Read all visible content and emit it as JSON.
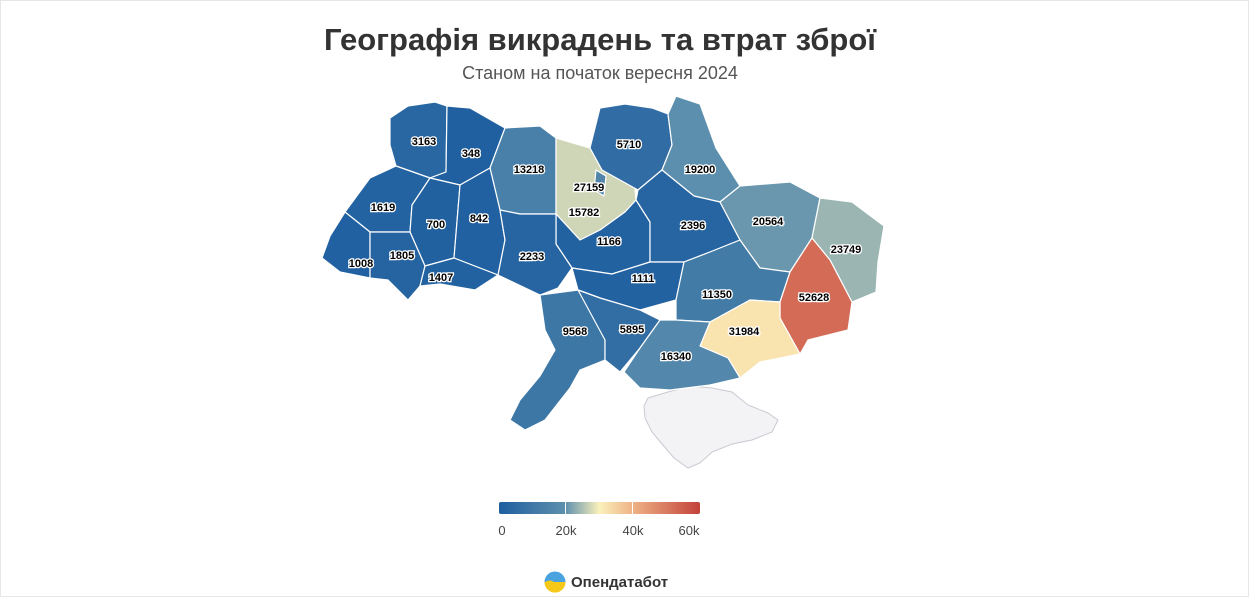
{
  "title": "Географія викрадень та втрат зброї",
  "subtitle": "Станом на початок вересня 2024",
  "colors": {
    "low": "#1f5fa0",
    "mid": "#fbf1bb",
    "high": "#c3413a",
    "no_data": "#f3f3f6"
  },
  "map_data": {
    "type": "choropleth",
    "unit": "cases",
    "regions": [
      {
        "id": "volyn",
        "value": 3163
      },
      {
        "id": "rivne",
        "value": 348
      },
      {
        "id": "zhytomyr",
        "value": 13218
      },
      {
        "id": "kyiv-oblast",
        "value": 27159
      },
      {
        "id": "kyiv-city",
        "value": 15782
      },
      {
        "id": "chernihiv",
        "value": 5710
      },
      {
        "id": "sumy",
        "value": 19200
      },
      {
        "id": "lviv",
        "value": 1619
      },
      {
        "id": "ternopil",
        "value": 700
      },
      {
        "id": "khmelnytskyi",
        "value": 842
      },
      {
        "id": "cherkasy",
        "value": 1166
      },
      {
        "id": "poltava",
        "value": 2396
      },
      {
        "id": "kharkiv",
        "value": 20564
      },
      {
        "id": "luhansk",
        "value": 23749
      },
      {
        "id": "zakarpattia",
        "value": 1008
      },
      {
        "id": "ivano-frankivsk",
        "value": 1805
      },
      {
        "id": "chernivtsi",
        "value": 1407
      },
      {
        "id": "vinnytsia",
        "value": 2233
      },
      {
        "id": "kirovohrad",
        "value": 1111
      },
      {
        "id": "dnipropetrovsk",
        "value": 11350
      },
      {
        "id": "donetsk",
        "value": 52628
      },
      {
        "id": "odesa",
        "value": 9568
      },
      {
        "id": "mykolaiv",
        "value": 5895
      },
      {
        "id": "zaporizhzhia",
        "value": 31984
      },
      {
        "id": "kherson",
        "value": 16340
      },
      {
        "id": "crimea",
        "value": null
      }
    ],
    "legend": {
      "min": 0,
      "max": 60000,
      "ticks": [
        "0",
        "20k",
        "40k",
        "60k"
      ]
    }
  },
  "brand": {
    "name": "Опендатабот",
    "logo_icon": "opendatabot-logo-icon"
  }
}
